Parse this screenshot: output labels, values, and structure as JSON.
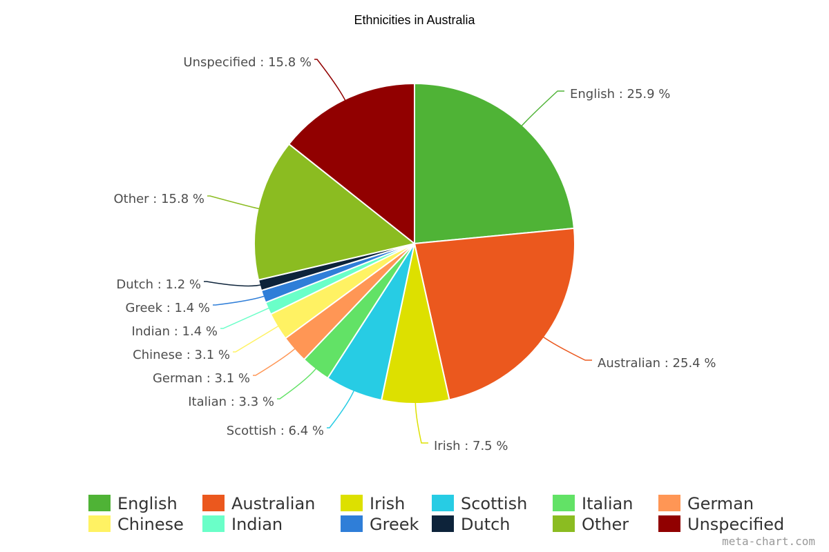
{
  "chart_data": {
    "type": "pie",
    "title": "Ethnicities in Australia",
    "unit": "%",
    "label_format": "{name} : {value} %",
    "categories": [
      "English",
      "Australian",
      "Irish",
      "Scottish",
      "Italian",
      "German",
      "Chinese",
      "Indian",
      "Greek",
      "Dutch",
      "Other",
      "Unspecified"
    ],
    "values": [
      25.9,
      25.4,
      7.5,
      6.4,
      3.3,
      3.1,
      3.1,
      1.4,
      1.4,
      1.2,
      15.8,
      15.8
    ],
    "colors": [
      "#4fb336",
      "#eb581e",
      "#dde000",
      "#27cce4",
      "#62e266",
      "#ff9655",
      "#fff263",
      "#6affc8",
      "#2f7ed8",
      "#0d233a",
      "#8bbc21",
      "#910000"
    ],
    "legend_placement": "bottom",
    "start_angle": "top, clockwise"
  },
  "credit": "meta-chart.com"
}
